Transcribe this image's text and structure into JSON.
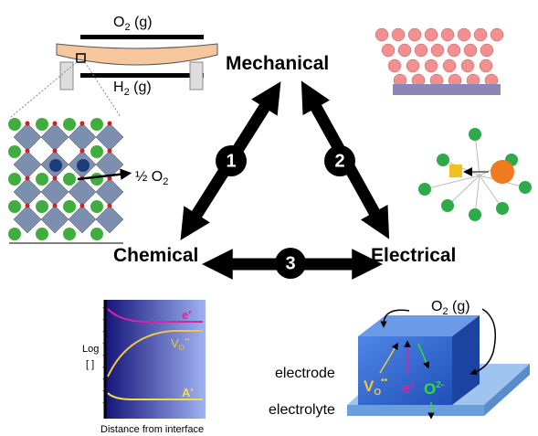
{
  "hub": {
    "mechanical": "Mechanical",
    "chemical": "Chemical",
    "electrical": "Electrical",
    "links": [
      "1",
      "2",
      "3"
    ]
  },
  "membrane": {
    "top_gas": {
      "symbol": "O",
      "subscript": "2",
      "suffix": " (g)"
    },
    "bottom_gas": {
      "symbol": "H",
      "subscript": "2",
      "suffix": " (g)"
    },
    "release": {
      "prefix": "½ O",
      "subscript": "2"
    }
  },
  "plot": {
    "y_label": "Log",
    "y_unit": "[ ]",
    "x_label": "Distance from interface",
    "charge_mark": "+",
    "electron": "e′",
    "vacancy": {
      "symbol": "V",
      "subscript": "O",
      "superscript": "••"
    },
    "acceptor": "A′"
  },
  "cell": {
    "gas": {
      "symbol": "O",
      "subscript": "2",
      "suffix": " (g)"
    },
    "electrode": "electrode",
    "electrolyte": "electrolyte",
    "vacancy": {
      "symbol": "V",
      "subscript": "O",
      "superscript": "••"
    },
    "electron": "e′",
    "oxide_ion": {
      "symbol": "O",
      "superscript": "2-"
    }
  }
}
